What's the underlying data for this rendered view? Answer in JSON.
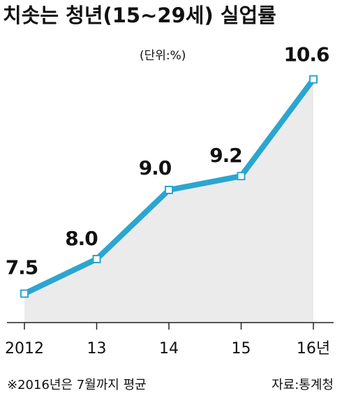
{
  "chart_data": {
    "type": "line",
    "title": "치솟는 청년(15~29세) 실업률",
    "unit_label": "(단위:%)",
    "categories": [
      "2012",
      "13",
      "14",
      "15",
      "16년"
    ],
    "values": [
      7.5,
      8.0,
      9.0,
      9.2,
      10.6
    ],
    "value_labels": [
      "7.5",
      "8.0",
      "9.0",
      "9.2",
      "10.6"
    ],
    "color": "#2ba6cf",
    "area_color": "#ebebeb",
    "ylim": [
      7,
      11
    ],
    "note": "※2016년은 7월까지 평균",
    "source": "자료:통계청"
  }
}
